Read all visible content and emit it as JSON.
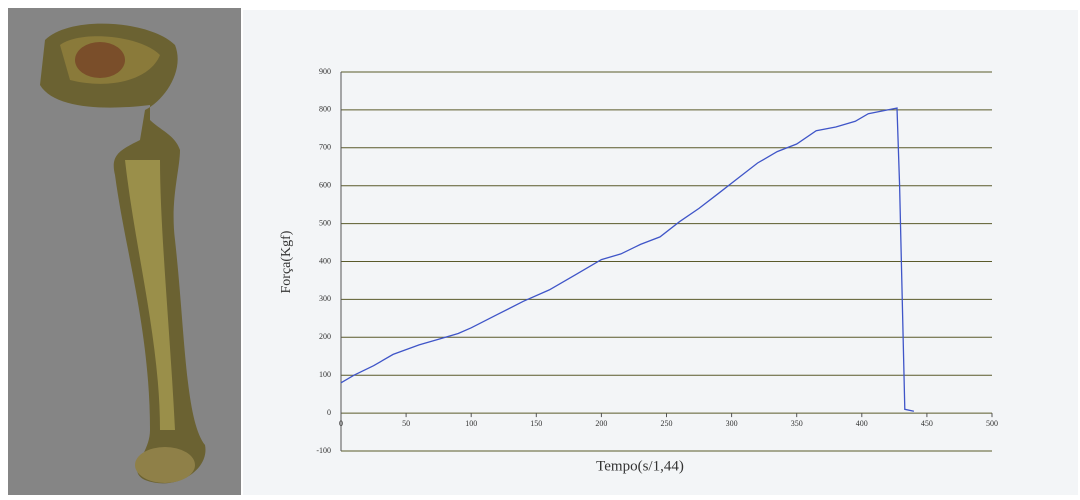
{
  "chart_data": {
    "type": "line",
    "x_label": "Tempo(s/1,44)",
    "y_label": "Força(Kgf)",
    "x": [
      0,
      10,
      25,
      40,
      60,
      75,
      90,
      100,
      120,
      140,
      160,
      180,
      200,
      215,
      230,
      245,
      260,
      275,
      290,
      305,
      320,
      335,
      350,
      365,
      380,
      395,
      405,
      420,
      427,
      429,
      433,
      440
    ],
    "values": [
      80,
      100,
      125,
      155,
      180,
      195,
      210,
      225,
      260,
      295,
      325,
      365,
      405,
      420,
      445,
      465,
      505,
      540,
      580,
      620,
      660,
      690,
      710,
      745,
      755,
      770,
      790,
      800,
      805,
      600,
      10,
      5
    ],
    "color": "#3f55c8",
    "xlim": [
      0,
      500
    ],
    "xticks": [
      0,
      50,
      100,
      150,
      200,
      250,
      300,
      350,
      400,
      450,
      500
    ],
    "ylim": [
      -100,
      900
    ],
    "yticks": [
      -100,
      0,
      100,
      200,
      300,
      400,
      500,
      600,
      700,
      800,
      900
    ],
    "grid": true
  }
}
